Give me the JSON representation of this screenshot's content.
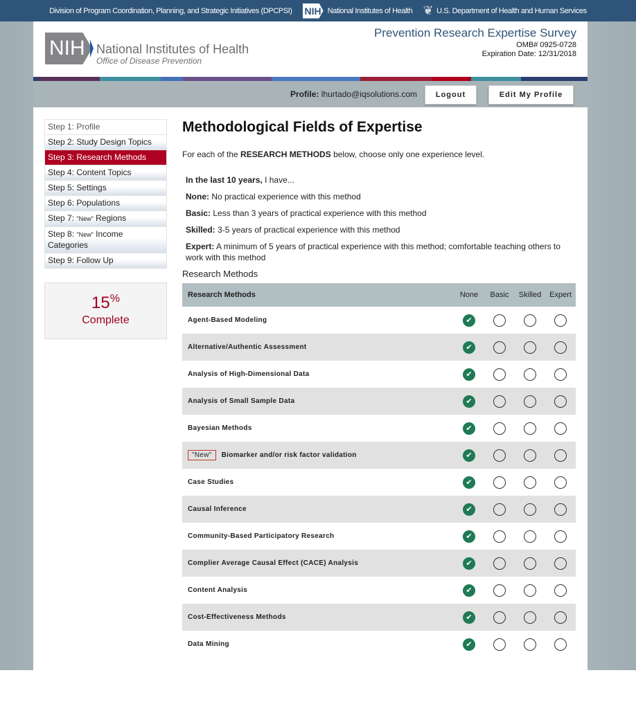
{
  "topbar": {
    "division": "Division of Program Coordination, Planning, and Strategic Initiatives (DPCPSI)",
    "nih_badge": "NIH",
    "nih": "National Institutes of Health",
    "hhs": "U.S. Department of Health and Human Services"
  },
  "header": {
    "logo_mark": "NIH",
    "logo_title": "National Institutes of Health",
    "logo_sub": "Office of Disease Prevention",
    "survey_title": "Prevention Research Expertise Survey",
    "omb": "OMB# 0925-0728",
    "expiration": "Expiration Date: 12/31/2018"
  },
  "profile": {
    "label": "Profile:",
    "email": "lhurtado@iqsolutions.com",
    "logout": "Logout",
    "edit": "Edit My Profile"
  },
  "sidebar": {
    "steps": [
      {
        "label": "Step 1: Profile"
      },
      {
        "label": "Step 2: Study Design Topics"
      },
      {
        "label": "Step 3: Research Methods",
        "active": true
      },
      {
        "label": "Step 4: Content Topics"
      },
      {
        "label": "Step 5: Settings"
      },
      {
        "label": "Step 6: Populations"
      },
      {
        "pre": "Step 7: ",
        "new": "\"New\"",
        "post": " Regions"
      },
      {
        "pre": "Step 8: ",
        "new": "\"New\"",
        "post": " Income Categories"
      },
      {
        "label": "Step 9: Follow Up"
      }
    ]
  },
  "progress": {
    "value": "15",
    "unit": "%",
    "label": "Complete"
  },
  "main": {
    "title": "Methodological Fields of Expertise",
    "intro_pre": "For each of the ",
    "intro_bold": "RESEARCH METHODS",
    "intro_post": " below, choose only one experience level.",
    "defs": [
      {
        "b": "In the last 10 years,",
        "t": " I have..."
      },
      {
        "b": "None:",
        "t": " No practical experience with this method"
      },
      {
        "b": "Basic:",
        "t": " Less than 3 years of practical experience with this method"
      },
      {
        "b": "Skilled:",
        "t": " 3-5 years of practical experience with this method"
      },
      {
        "b": "Expert:",
        "t": " A minimum of 5 years of practical experience with this method; comfortable teaching others to work with this method"
      }
    ],
    "caption": "Research Methods",
    "columns": [
      "Research Methods",
      "None",
      "Basic",
      "Skilled",
      "Expert"
    ],
    "rows": [
      {
        "name": "Agent-Based Modeling",
        "selected": "None"
      },
      {
        "name": "Alternative/Authentic Assessment",
        "selected": "None"
      },
      {
        "name": "Analysis of High-Dimensional Data",
        "selected": "None"
      },
      {
        "name": "Analysis of Small Sample Data",
        "selected": "None"
      },
      {
        "name": "Bayesian Methods",
        "selected": "None"
      },
      {
        "name": "Biomarker and/or risk factor validation",
        "tag": "\"New\"",
        "selected": "None"
      },
      {
        "name": "Case Studies",
        "selected": "None"
      },
      {
        "name": "Causal Inference",
        "selected": "None"
      },
      {
        "name": "Community-Based Participatory Research",
        "selected": "None"
      },
      {
        "name": "Complier Average Causal Effect (CACE) Analysis",
        "selected": "None"
      },
      {
        "name": "Content Analysis",
        "selected": "None"
      },
      {
        "name": "Cost-Effectiveness Methods",
        "selected": "None"
      },
      {
        "name": "Data Mining",
        "selected": "None"
      }
    ]
  },
  "colors": {
    "active_step": "#ae0021",
    "selected": "#1f7a55",
    "topbar": "#2f5479"
  }
}
